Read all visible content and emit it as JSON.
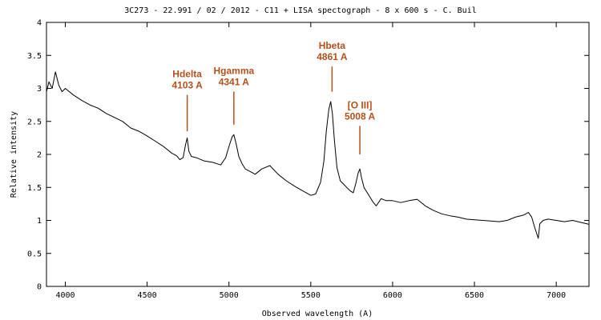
{
  "colors": {
    "background": "#ffffff",
    "frame": "#000000",
    "spectrum": "#000000",
    "annotation": "#b5501a"
  },
  "chart_data": {
    "type": "line",
    "title": "3C273 - 22.991 / 02 / 2012 - C11 + LISA spectograph - 8 x 600 s - C. Buil",
    "xlabel": "Observed wavelength (A)",
    "ylabel": "Relative intensity",
    "xlim": [
      3885,
      7200
    ],
    "ylim": [
      0,
      4
    ],
    "xticks": [
      4000,
      4500,
      5000,
      5500,
      6000,
      6500,
      7000
    ],
    "yticks": [
      0,
      0.5,
      1,
      1.5,
      2,
      2.5,
      3,
      3.5,
      4
    ],
    "ytick_labels": [
      "0",
      "0.5",
      "1",
      "1.5",
      "2",
      "2.5",
      "3",
      "3.5",
      "4"
    ],
    "grid": false,
    "legend": "none",
    "annotations": [
      {
        "line1": "Hdelta",
        "line2": "4103 A",
        "x": 4745,
        "y_top": 2.95,
        "y_bottom": 2.35
      },
      {
        "line1": "Hgamma",
        "line2": "4341 A",
        "x": 5030,
        "y_top": 3.0,
        "y_bottom": 2.45
      },
      {
        "line1": "Hbeta",
        "line2": "4861 A",
        "x": 5630,
        "y_top": 3.38,
        "y_bottom": 2.95
      },
      {
        "line1": "[O III]",
        "line2": "5008 A",
        "x": 5800,
        "y_top": 2.48,
        "y_bottom": 2.0
      }
    ],
    "series": [
      {
        "x": [
          3885,
          3900,
          3920,
          3940,
          3960,
          3980,
          4000,
          4050,
          4100,
          4150,
          4200,
          4250,
          4300,
          4350,
          4400,
          4450,
          4500,
          4550,
          4600,
          4650,
          4680,
          4700,
          4720,
          4735,
          4745,
          4755,
          4770,
          4800,
          4850,
          4900,
          4950,
          4980,
          5000,
          5020,
          5030,
          5045,
          5060,
          5080,
          5100,
          5130,
          5160,
          5200,
          5250,
          5300,
          5350,
          5400,
          5450,
          5500,
          5530,
          5560,
          5580,
          5595,
          5610,
          5622,
          5632,
          5645,
          5660,
          5680,
          5700,
          5720,
          5740,
          5760,
          5775,
          5790,
          5800,
          5810,
          5825,
          5850,
          5880,
          5900,
          5930,
          5960,
          6000,
          6050,
          6100,
          6150,
          6200,
          6250,
          6300,
          6350,
          6400,
          6450,
          6500,
          6550,
          6600,
          6650,
          6700,
          6750,
          6800,
          6830,
          6850,
          6870,
          6890,
          6900,
          6920,
          6950,
          7000,
          7050,
          7100,
          7150,
          7200
        ],
        "y": [
          2.95,
          3.1,
          3.0,
          3.25,
          3.05,
          2.95,
          3.0,
          2.9,
          2.82,
          2.75,
          2.7,
          2.62,
          2.56,
          2.5,
          2.4,
          2.35,
          2.28,
          2.2,
          2.12,
          2.02,
          1.98,
          1.92,
          1.95,
          2.15,
          2.25,
          2.05,
          1.97,
          1.95,
          1.9,
          1.88,
          1.84,
          1.95,
          2.12,
          2.27,
          2.3,
          2.15,
          1.97,
          1.86,
          1.78,
          1.74,
          1.7,
          1.78,
          1.83,
          1.7,
          1.6,
          1.52,
          1.45,
          1.38,
          1.4,
          1.58,
          1.9,
          2.35,
          2.68,
          2.8,
          2.62,
          2.2,
          1.8,
          1.6,
          1.55,
          1.5,
          1.45,
          1.42,
          1.56,
          1.72,
          1.78,
          1.65,
          1.5,
          1.4,
          1.28,
          1.22,
          1.33,
          1.3,
          1.3,
          1.27,
          1.3,
          1.32,
          1.22,
          1.15,
          1.1,
          1.07,
          1.05,
          1.02,
          1.01,
          1.0,
          0.99,
          0.98,
          1.0,
          1.05,
          1.08,
          1.12,
          1.05,
          0.88,
          0.73,
          0.95,
          1.0,
          1.02,
          1.0,
          0.98,
          1.0,
          0.97,
          0.94
        ]
      }
    ]
  }
}
